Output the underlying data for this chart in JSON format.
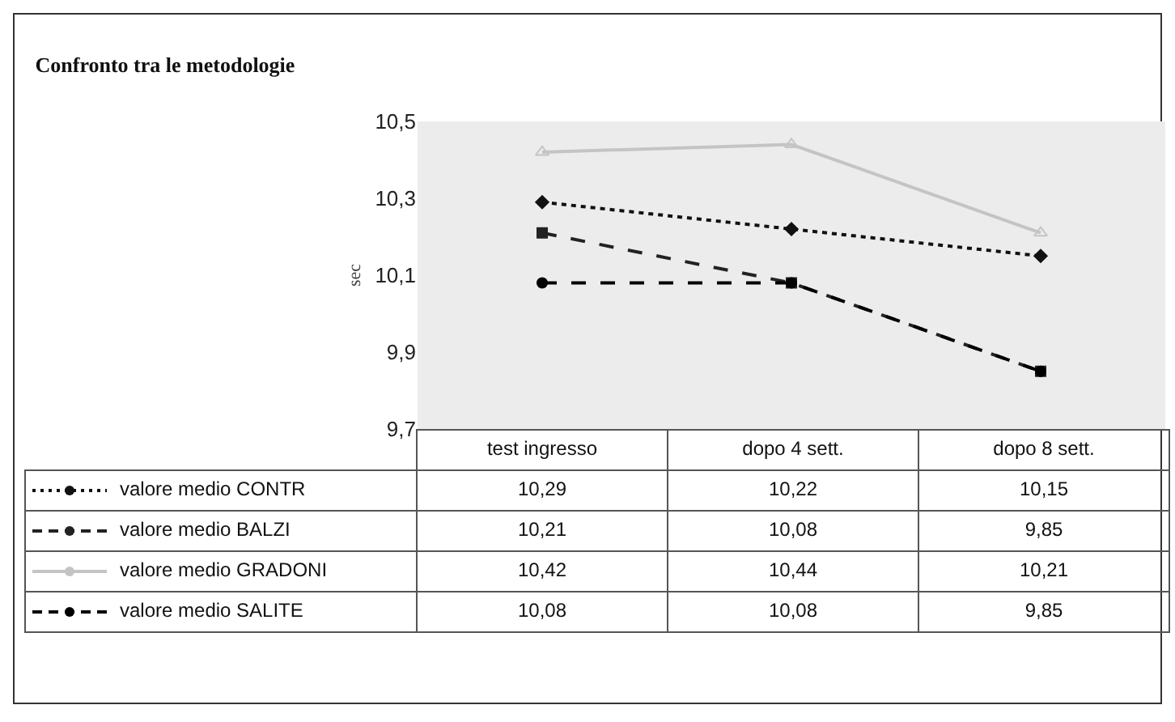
{
  "chart_data": {
    "type": "line",
    "title": "Confronto tra le metodologie",
    "ylabel": "sec",
    "categories": [
      "test ingresso",
      "dopo 4 sett.",
      "dopo 8 sett."
    ],
    "ylim": [
      9.7,
      10.5
    ],
    "yticks": [
      {
        "value": 9.7,
        "label": "9,7"
      },
      {
        "value": 9.9,
        "label": "9,9"
      },
      {
        "value": 10.1,
        "label": "10,1"
      },
      {
        "value": 10.3,
        "label": "10,3"
      },
      {
        "value": 10.5,
        "label": "10,5"
      }
    ],
    "grid": false,
    "legend": "bottom",
    "series": [
      {
        "name": "valore medio CONTR",
        "color": "#111111",
        "line_style": "dotted",
        "marker": "diamond",
        "values": [
          10.29,
          10.22,
          10.15
        ],
        "value_labels": [
          "10,29",
          "10,22",
          "10,15"
        ]
      },
      {
        "name": "valore medio BALZI",
        "color": "#222222",
        "line_style": "dashed",
        "marker": "square",
        "values": [
          10.21,
          10.08,
          9.85
        ],
        "value_labels": [
          "10,21",
          "10,08",
          "9,85"
        ]
      },
      {
        "name": "valore medio GRADONI",
        "color": "#c4c4c4",
        "line_style": "solid",
        "marker": "triangle",
        "values": [
          10.42,
          10.44,
          10.21
        ],
        "value_labels": [
          "10,42",
          "10,44",
          "10,21"
        ]
      },
      {
        "name": "valore medio SALITE",
        "color": "#000000",
        "line_style": "dashed",
        "marker": "circle",
        "values": [
          10.08,
          10.08,
          9.85
        ],
        "value_labels": [
          "10,08",
          "10,08",
          "9,85"
        ]
      }
    ]
  }
}
